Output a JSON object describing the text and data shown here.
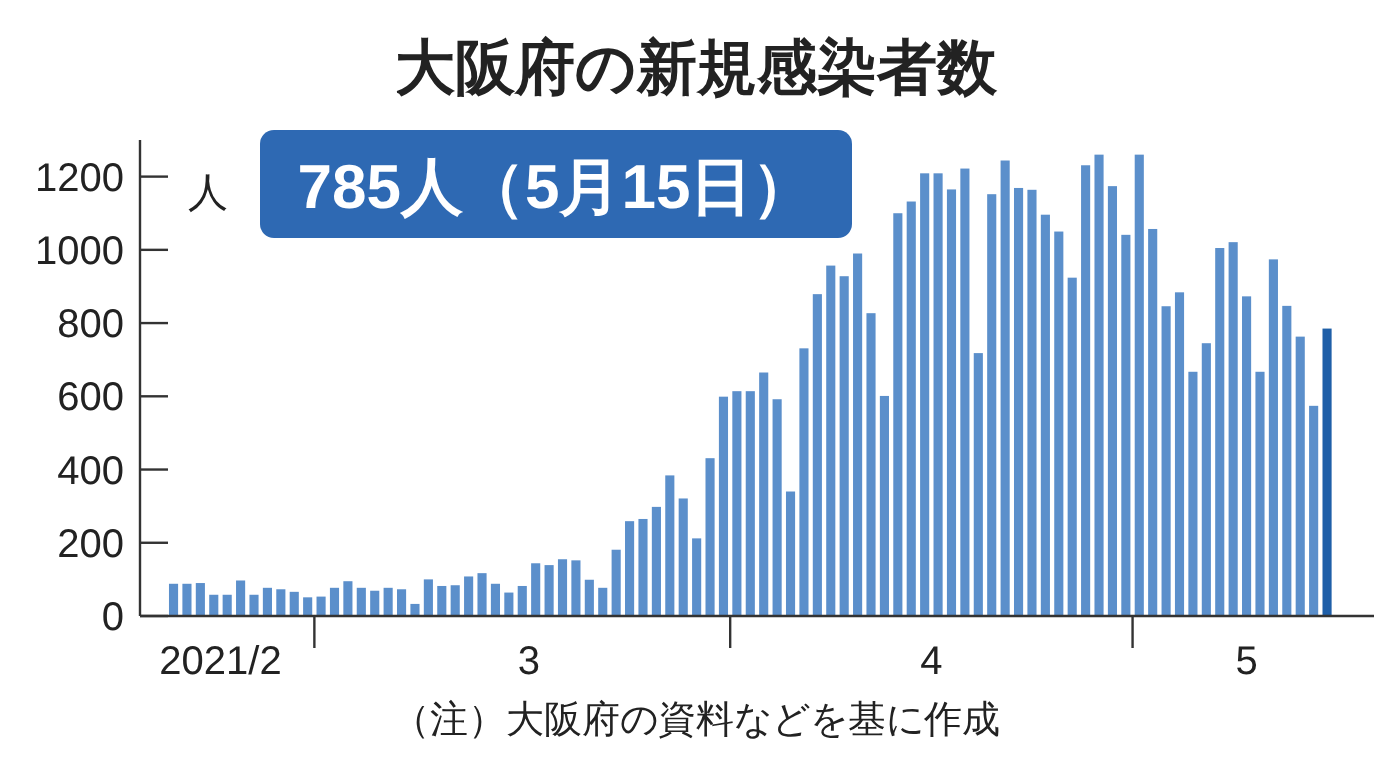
{
  "chart_data": {
    "type": "bar",
    "title": "大阪府の新規感染者数",
    "ylabel": "人",
    "annotations": [
      "785人（5月15日）",
      "（注）大阪府の資料などを基に作成"
    ],
    "x": [
      "2021-02-18",
      "2021-02-19",
      "2021-02-20",
      "2021-02-21",
      "2021-02-22",
      "2021-02-23",
      "2021-02-24",
      "2021-02-25",
      "2021-02-26",
      "2021-02-27",
      "2021-02-28",
      "2021-03-01",
      "2021-03-02",
      "2021-03-03",
      "2021-03-04",
      "2021-03-05",
      "2021-03-06",
      "2021-03-07",
      "2021-03-08",
      "2021-03-09",
      "2021-03-10",
      "2021-03-11",
      "2021-03-12",
      "2021-03-13",
      "2021-03-14",
      "2021-03-15",
      "2021-03-16",
      "2021-03-17",
      "2021-03-18",
      "2021-03-19",
      "2021-03-20",
      "2021-03-21",
      "2021-03-22",
      "2021-03-23",
      "2021-03-24",
      "2021-03-25",
      "2021-03-26",
      "2021-03-27",
      "2021-03-28",
      "2021-03-29",
      "2021-03-30",
      "2021-03-31",
      "2021-04-01",
      "2021-04-02",
      "2021-04-03",
      "2021-04-04",
      "2021-04-05",
      "2021-04-06",
      "2021-04-07",
      "2021-04-08",
      "2021-04-09",
      "2021-04-10",
      "2021-04-11",
      "2021-04-12",
      "2021-04-13",
      "2021-04-14",
      "2021-04-15",
      "2021-04-16",
      "2021-04-17",
      "2021-04-18",
      "2021-04-19",
      "2021-04-20",
      "2021-04-21",
      "2021-04-22",
      "2021-04-23",
      "2021-04-24",
      "2021-04-25",
      "2021-04-26",
      "2021-04-27",
      "2021-04-28",
      "2021-04-29",
      "2021-04-30",
      "2021-05-01",
      "2021-05-02",
      "2021-05-03",
      "2021-05-04",
      "2021-05-05",
      "2021-05-06",
      "2021-05-07",
      "2021-05-08",
      "2021-05-09",
      "2021-05-10",
      "2021-05-11",
      "2021-05-12",
      "2021-05-13",
      "2021-05-14",
      "2021-05-15"
    ],
    "values": [
      88,
      88,
      90,
      58,
      58,
      97,
      58,
      77,
      73,
      66,
      51,
      53,
      77,
      95,
      77,
      69,
      77,
      73,
      33,
      100,
      82,
      84,
      108,
      117,
      88,
      64,
      82,
      144,
      139,
      155,
      152,
      99,
      77,
      181,
      259,
      265,
      298,
      384,
      321,
      212,
      431,
      599,
      614,
      614,
      665,
      592,
      340,
      731,
      879,
      957,
      928,
      990,
      827,
      601,
      1100,
      1132,
      1209,
      1209,
      1165,
      1222,
      718,
      1152,
      1244,
      1169,
      1164,
      1096,
      1050,
      924,
      1231,
      1260,
      1174,
      1041,
      1260,
      1057,
      846,
      884,
      667,
      745,
      1005,
      1021,
      873,
      667,
      974,
      847,
      763,
      574,
      785
    ],
    "colors": [
      "#5b8fcb",
      "#5b8fcb",
      "#5b8fcb",
      "#5b8fcb",
      "#5b8fcb",
      "#5b8fcb",
      "#5b8fcb",
      "#5b8fcb",
      "#5b8fcb",
      "#5b8fcb",
      "#5b8fcb",
      "#5b8fcb",
      "#5b8fcb",
      "#5b8fcb",
      "#5b8fcb",
      "#5b8fcb",
      "#5b8fcb",
      "#5b8fcb",
      "#5b8fcb",
      "#5b8fcb",
      "#5b8fcb",
      "#5b8fcb",
      "#5b8fcb",
      "#5b8fcb",
      "#5b8fcb",
      "#5b8fcb",
      "#5b8fcb",
      "#5b8fcb",
      "#5b8fcb",
      "#5b8fcb",
      "#5b8fcb",
      "#5b8fcb",
      "#5b8fcb",
      "#5b8fcb",
      "#5b8fcb",
      "#5b8fcb",
      "#5b8fcb",
      "#5b8fcb",
      "#5b8fcb",
      "#5b8fcb",
      "#5b8fcb",
      "#5b8fcb",
      "#5b8fcb",
      "#5b8fcb",
      "#5b8fcb",
      "#5b8fcb",
      "#5b8fcb",
      "#5b8fcb",
      "#5b8fcb",
      "#5b8fcb",
      "#5b8fcb",
      "#5b8fcb",
      "#5b8fcb",
      "#5b8fcb",
      "#5b8fcb",
      "#5b8fcb",
      "#5b8fcb",
      "#5b8fcb",
      "#5b8fcb",
      "#5b8fcb",
      "#5b8fcb",
      "#5b8fcb",
      "#5b8fcb",
      "#5b8fcb",
      "#5b8fcb",
      "#5b8fcb",
      "#5b8fcb",
      "#5b8fcb",
      "#5b8fcb",
      "#5b8fcb",
      "#5b8fcb",
      "#5b8fcb",
      "#5b8fcb",
      "#5b8fcb",
      "#5b8fcb",
      "#5b8fcb",
      "#5b8fcb",
      "#5b8fcb",
      "#5b8fcb",
      "#5b8fcb",
      "#5b8fcb",
      "#5b8fcb",
      "#5b8fcb",
      "#5b8fcb",
      "#5b8fcb",
      "#5b8fcb",
      "#1f5fa8"
    ],
    "xlim": [
      "2021-02-15T12:00",
      "2021-05-18T12:00"
    ],
    "xticks": [
      {
        "value": "2021-02-21T12:00",
        "label": "2021/2"
      },
      {
        "value": "2021-02-28T12:00",
        "label": null
      },
      {
        "value": "2021-03-16T12:00",
        "label": "3"
      },
      {
        "value": "2021-03-31T12:00",
        "label": null
      },
      {
        "value": "2021-04-15T12:00",
        "label": "4"
      },
      {
        "value": "2021-04-30T12:00",
        "label": null
      },
      {
        "value": "2021-05-09T00:00",
        "label": "5"
      }
    ],
    "ylim": [
      0,
      1300
    ],
    "yticks": [
      0,
      200,
      400,
      600,
      800,
      1000,
      1200
    ],
    "grid": false
  }
}
